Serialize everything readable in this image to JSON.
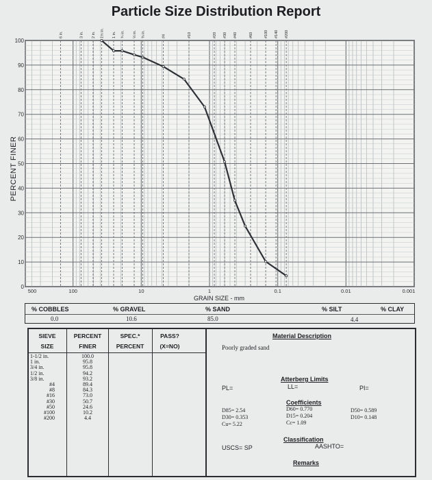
{
  "report": {
    "title": "Particle Size Distribution Report"
  },
  "chart_data": {
    "type": "line",
    "title": "Particle Size Distribution Report",
    "xlabel": "GRAIN SIZE - mm",
    "ylabel": "PERCENT FINER",
    "x_scale": "log-reversed",
    "xlim": [
      500,
      0.001
    ],
    "ylim": [
      0,
      100
    ],
    "x_ticks": [
      "500",
      "100",
      "10",
      "1",
      "0.1",
      "0.01",
      "0.001"
    ],
    "y_ticks": [
      "0",
      "10",
      "20",
      "30",
      "40",
      "50",
      "60",
      "70",
      "80",
      "90",
      "100"
    ],
    "sieve_labels_top": [
      "6 in.",
      "3 in.",
      "2 in.",
      "1½ in.",
      "1 in.",
      "¾ in.",
      "½ in.",
      "⅜ in.",
      "#4",
      "#10",
      "#20",
      "#30",
      "#40",
      "#60",
      "#100",
      "#140",
      "#200"
    ],
    "grid": true,
    "series": [
      {
        "x": [
          38.1,
          25.4,
          19.05,
          12.7,
          9.525,
          4.75,
          2.36,
          1.18,
          0.6,
          0.425,
          0.3,
          0.15,
          0.075
        ],
        "y": [
          100.0,
          95.8,
          95.8,
          94.2,
          93.2,
          89.4,
          84.3,
          73.0,
          50.7,
          35.0,
          24.6,
          10.2,
          4.4
        ]
      }
    ]
  },
  "summary": {
    "headers": [
      "% COBBLES",
      "% GRAVEL",
      "% SAND",
      "% SILT",
      "% CLAY"
    ],
    "cobbles": "0.0",
    "gravel": "10.6",
    "sand": "85.0",
    "silt_clay": "4.4"
  },
  "sieve_table": {
    "headers": {
      "sieve": "SIEVE",
      "size": "SIZE",
      "percent": "PERCENT",
      "finer": "FINER",
      "spec": "SPEC.*",
      "spec2": "PERCENT",
      "pass": "PASS?",
      "pass2": "(X=NO)"
    },
    "sizes": [
      "1-1/2 in.",
      "1 in.",
      "3/4 in.",
      "1/2 in.",
      "3/8 in.",
      "#4",
      "#8",
      "#16",
      "#30",
      "#50",
      "#100",
      "#200"
    ],
    "finer": [
      "100.0",
      "95.8",
      "95.8",
      "94.2",
      "93.2",
      "89.4",
      "84.3",
      "73.0",
      "50.7",
      "24.6",
      "10.2",
      "4.4"
    ]
  },
  "material": {
    "heading": "Material Description",
    "description": "Poorly graded sand",
    "atterberg_heading": "Atterberg Limits",
    "pl": "PL=",
    "ll": "LL=",
    "pi": "PI=",
    "coeff_heading": "Coefficients",
    "d85": "D85= 2.54",
    "d60": "D60= 0.770",
    "d50": "D50= 0.589",
    "d30": "D30= 0.353",
    "d15": "D15= 0.204",
    "d10": "D10= 0.148",
    "cu": "Cu= 5.22",
    "cc": "Cc= 1.09",
    "class_heading": "Classification",
    "uscs": "USCS= SP",
    "aashto": "AASHTO=",
    "remarks": "Remarks"
  }
}
